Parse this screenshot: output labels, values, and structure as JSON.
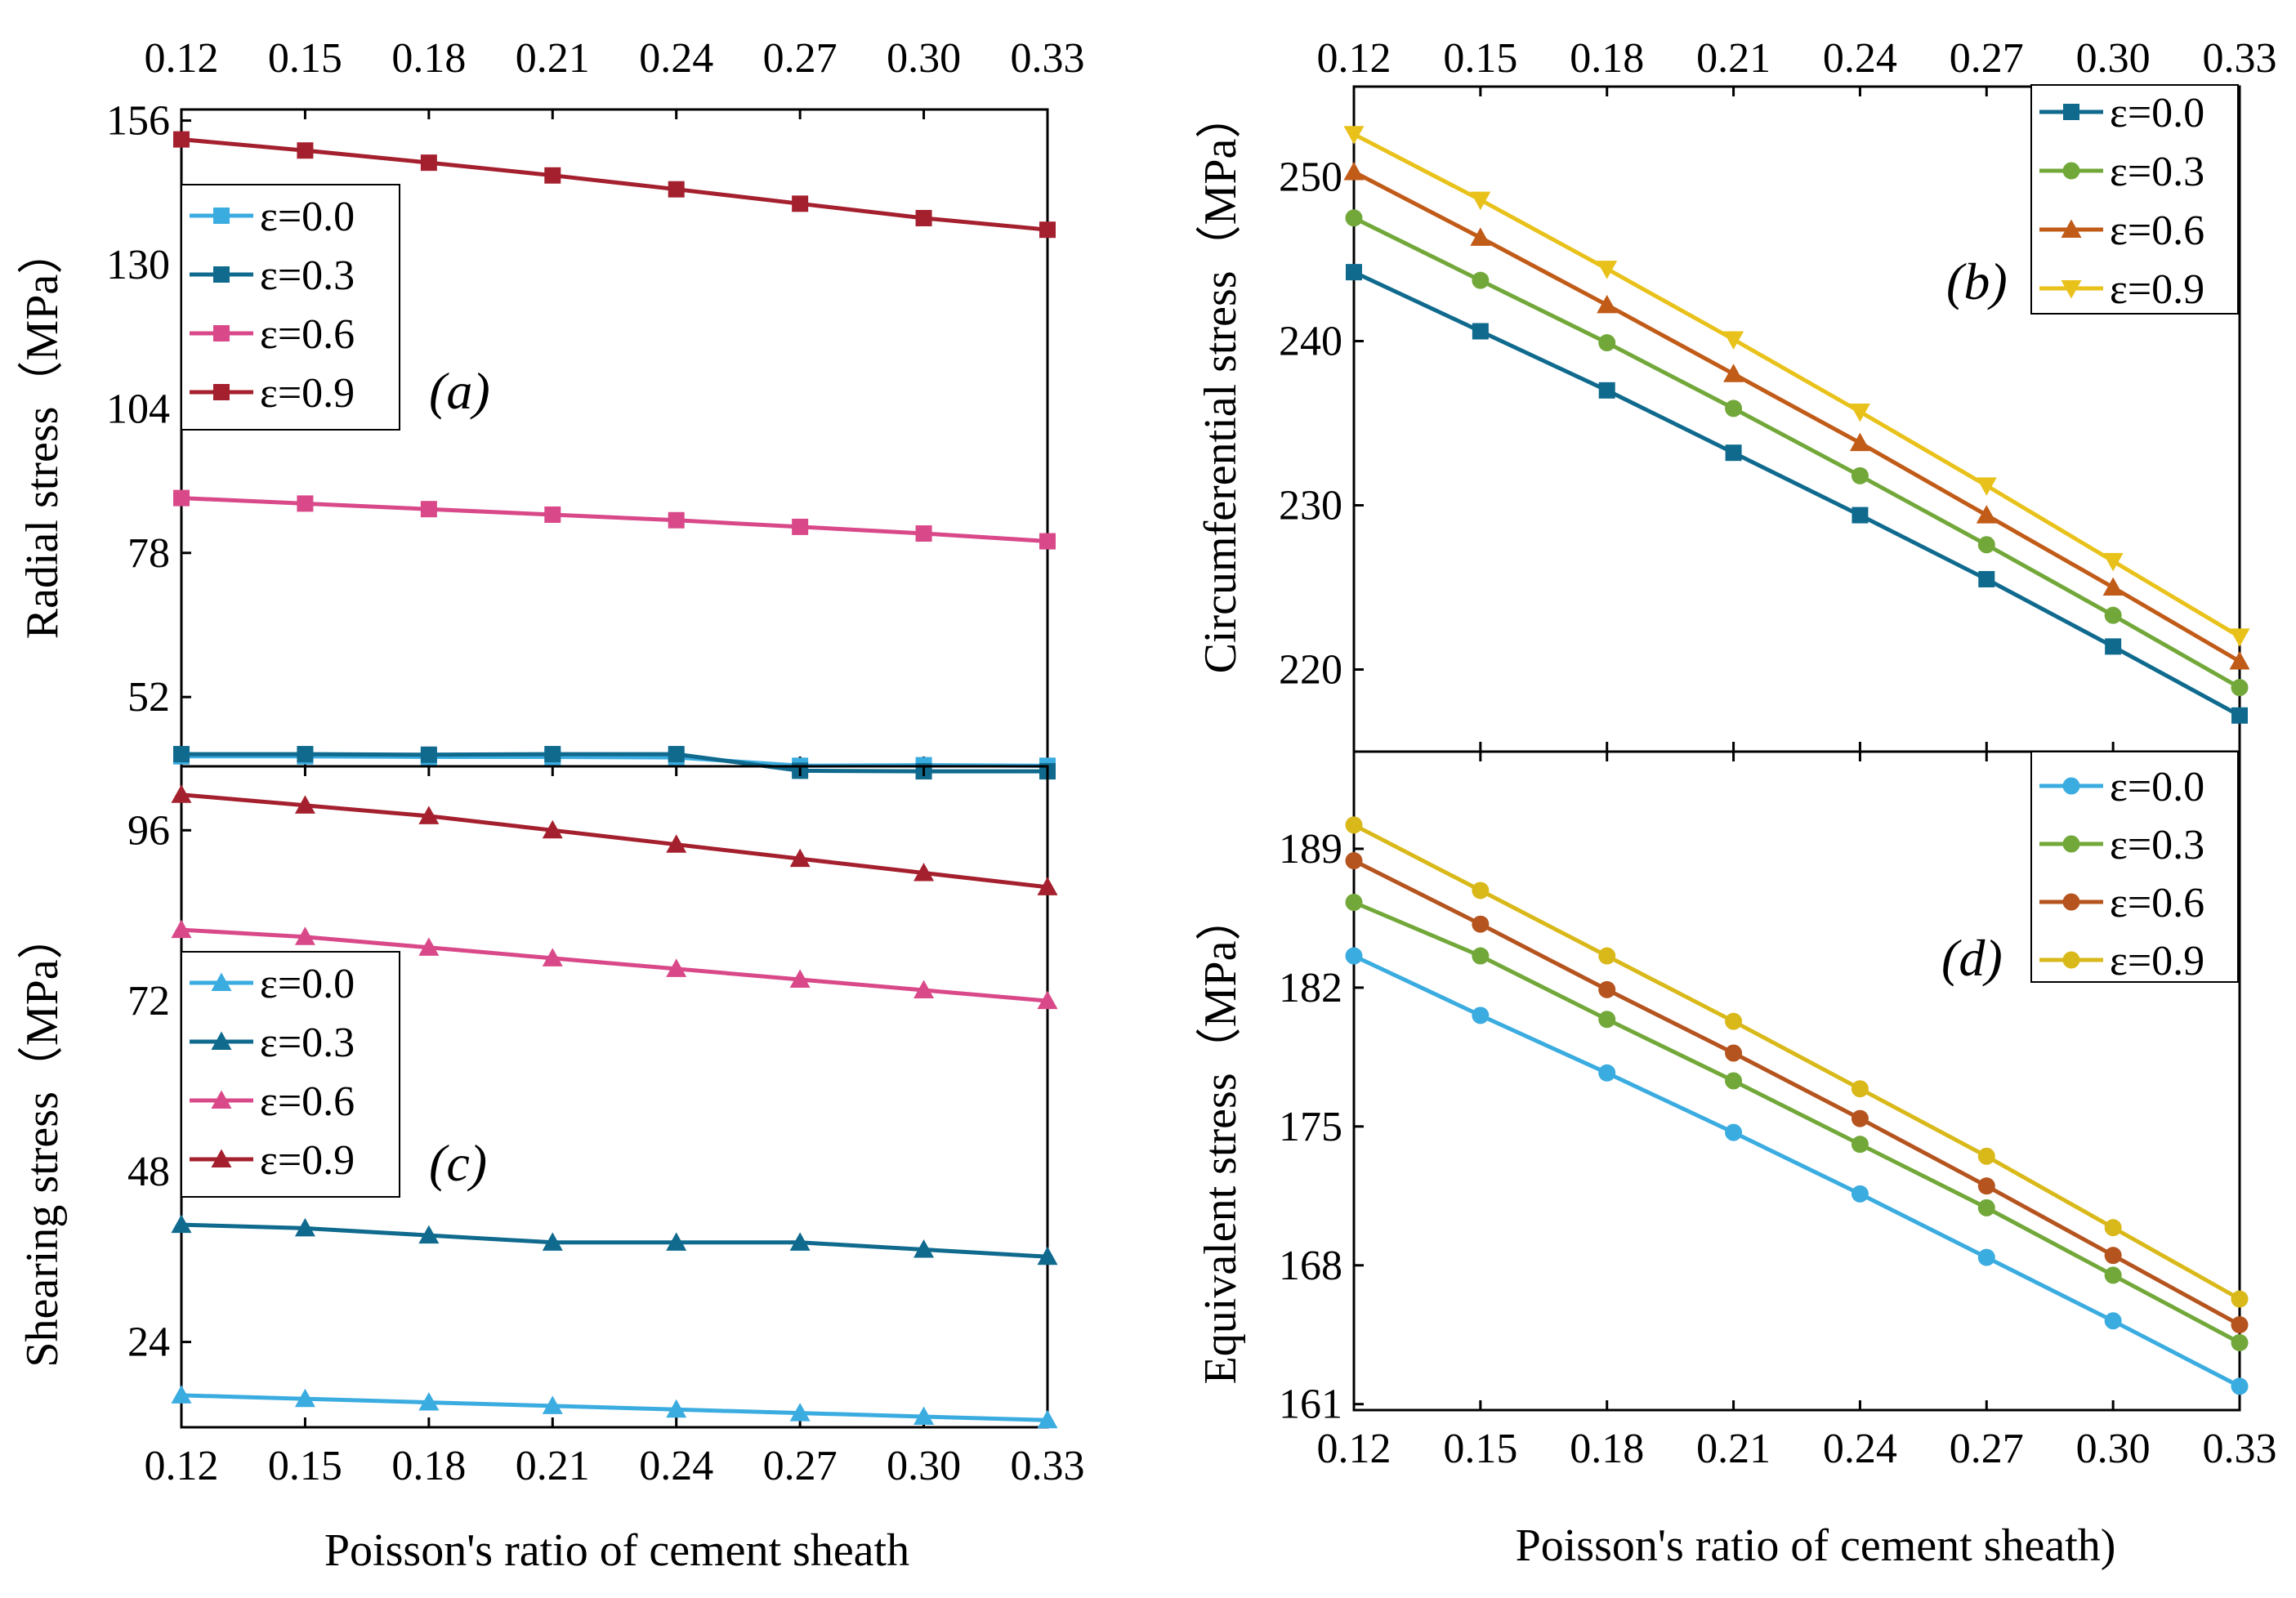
{
  "colors": {
    "radial": [
      "#3BACE0",
      "#0F6A8E",
      "#D9498A",
      "#A5202E"
    ],
    "circ": [
      "#0F6A8E",
      "#72A83A",
      "#C15B18",
      "#E8C21A"
    ],
    "shear": [
      "#3BACE0",
      "#0F6A8E",
      "#D9498A",
      "#A5202E"
    ],
    "equiv": [
      "#3BACE0",
      "#72A83A",
      "#B5541E",
      "#D9B91A"
    ]
  },
  "chart_data": [
    {
      "id": "a",
      "type": "line",
      "panel_label": "(a)",
      "ylabel": "Radial stress（MPa）",
      "xlabel": "Poisson's ratio of cement sheath",
      "x": [
        0.12,
        0.15,
        0.18,
        0.21,
        0.24,
        0.27,
        0.3,
        0.33
      ],
      "x_tick_labels": [
        "0.12",
        "0.15",
        "0.18",
        "0.21",
        "0.24",
        "0.27",
        "0.30",
        "0.33"
      ],
      "ylim": [
        39.5,
        158
      ],
      "y_ticks": [
        52,
        78,
        104,
        130,
        156
      ],
      "marker": "square",
      "legend_position": "top-left",
      "series": [
        {
          "name": "ε=0.0",
          "values": [
            41.3,
            41.3,
            41.2,
            41.2,
            41.1,
            39.6,
            39.7,
            39.6
          ]
        },
        {
          "name": "ε=0.3",
          "values": [
            41.7,
            41.7,
            41.6,
            41.7,
            41.7,
            38.7,
            38.6,
            38.6
          ]
        },
        {
          "name": "ε=0.6",
          "values": [
            87.9,
            86.9,
            85.9,
            84.9,
            83.9,
            82.7,
            81.5,
            80.1
          ]
        },
        {
          "name": "ε=0.9",
          "values": [
            152.6,
            150.6,
            148.4,
            146.1,
            143.6,
            141.0,
            138.4,
            136.3
          ]
        }
      ]
    },
    {
      "id": "b",
      "type": "line",
      "panel_label": "(b)",
      "ylabel": "Circumferential stress（MPa）",
      "xlabel": "",
      "x": [
        0.12,
        0.15,
        0.18,
        0.21,
        0.24,
        0.27,
        0.3,
        0.33
      ],
      "x_tick_labels": [
        "0.12",
        "0.15",
        "0.18",
        "0.21",
        "0.24",
        "0.27",
        "0.30",
        "0.33"
      ],
      "ylim": [
        215,
        255.5
      ],
      "y_ticks": [
        220,
        230,
        240,
        250
      ],
      "markers": [
        "square",
        "circle",
        "triangle-up",
        "triangle-down"
      ],
      "legend_position": "top-right",
      "series": [
        {
          "name": "ε=0.0",
          "values": [
            244.2,
            240.6,
            237.0,
            233.2,
            229.4,
            225.5,
            221.4,
            217.2
          ]
        },
        {
          "name": "ε=0.3",
          "values": [
            247.5,
            243.7,
            239.9,
            235.9,
            231.8,
            227.6,
            223.3,
            218.9
          ]
        },
        {
          "name": "ε=0.6",
          "values": [
            250.3,
            246.3,
            242.2,
            238.0,
            233.8,
            229.4,
            225.0,
            220.5
          ]
        },
        {
          "name": "ε=0.9",
          "values": [
            252.6,
            248.6,
            244.4,
            240.1,
            235.7,
            231.2,
            226.6,
            222.0
          ]
        }
      ]
    },
    {
      "id": "c",
      "type": "line",
      "panel_label": "(c)",
      "ylabel": "Shearing stress（MPa）",
      "xlabel": "Poisson's ratio of cement sheath",
      "x": [
        0.12,
        0.15,
        0.18,
        0.21,
        0.24,
        0.27,
        0.3,
        0.33
      ],
      "x_tick_labels": [
        "0.12",
        "0.15",
        "0.18",
        "0.21",
        "0.24",
        "0.27",
        "0.30",
        "0.33"
      ],
      "ylim": [
        12,
        105
      ],
      "y_ticks": [
        24,
        48,
        72,
        96
      ],
      "marker": "triangle-up",
      "legend_position": "middle-left",
      "series": [
        {
          "name": "ε=0.0",
          "values": [
            16.5,
            16.0,
            15.5,
            15.0,
            14.5,
            14.0,
            13.5,
            13.0
          ]
        },
        {
          "name": "ε=0.3",
          "values": [
            40.5,
            40.0,
            39.0,
            38.0,
            38.0,
            38.0,
            37.0,
            36.0
          ]
        },
        {
          "name": "ε=0.6",
          "values": [
            82.0,
            81.0,
            79.5,
            78.0,
            76.5,
            75.0,
            73.5,
            72.0
          ]
        },
        {
          "name": "ε=0.9",
          "values": [
            101.0,
            99.5,
            98.0,
            96.0,
            94.0,
            92.0,
            90.0,
            88.0
          ]
        }
      ]
    },
    {
      "id": "d",
      "type": "line",
      "panel_label": "(d)",
      "ylabel": "Equivalent stress（MPa）",
      "xlabel": "Poisson's ratio of cement sheath)",
      "x": [
        0.12,
        0.15,
        0.18,
        0.21,
        0.24,
        0.27,
        0.3,
        0.33
      ],
      "x_tick_labels": [
        "0.12",
        "0.15",
        "0.18",
        "0.21",
        "0.24",
        "0.27",
        "0.30",
        "0.33"
      ],
      "ylim": [
        160.7,
        193.9
      ],
      "y_ticks": [
        161,
        168,
        175,
        182,
        189
      ],
      "marker": "circle",
      "legend_position": "top-right",
      "series": [
        {
          "name": "ε=0.0",
          "values": [
            183.6,
            180.6,
            177.7,
            174.7,
            171.6,
            168.4,
            165.2,
            161.9
          ]
        },
        {
          "name": "ε=0.3",
          "values": [
            186.3,
            183.6,
            180.4,
            177.3,
            174.1,
            170.9,
            167.5,
            164.1
          ]
        },
        {
          "name": "ε=0.6",
          "values": [
            188.4,
            185.2,
            181.9,
            178.7,
            175.4,
            172.0,
            168.5,
            165.0
          ]
        },
        {
          "name": "ε=0.9",
          "values": [
            190.2,
            186.9,
            183.6,
            180.3,
            176.9,
            173.5,
            169.9,
            166.3
          ]
        }
      ]
    }
  ]
}
